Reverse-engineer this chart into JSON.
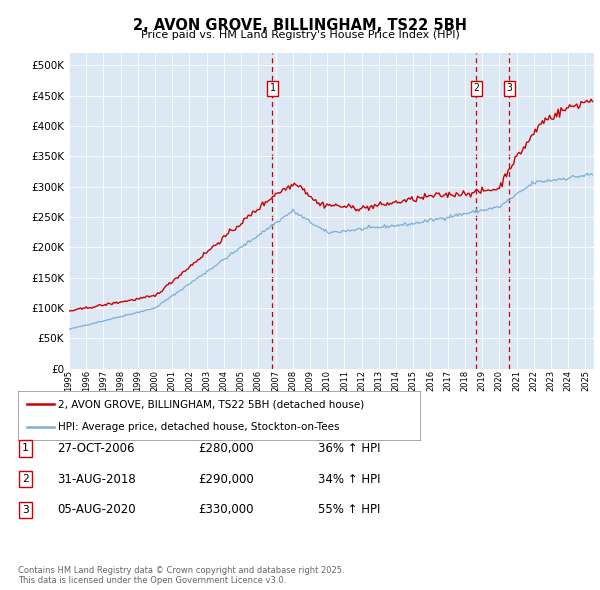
{
  "title": "2, AVON GROVE, BILLINGHAM, TS22 5BH",
  "subtitle": "Price paid vs. HM Land Registry's House Price Index (HPI)",
  "background_color": "#dce9f5",
  "ylim": [
    0,
    520000
  ],
  "yticks": [
    0,
    50000,
    100000,
    150000,
    200000,
    250000,
    300000,
    350000,
    400000,
    450000,
    500000
  ],
  "red_line_color": "#cc0000",
  "blue_line_color": "#7bafd4",
  "vline_color": "#cc0000",
  "transaction_markers": [
    {
      "date": 2006.82,
      "label": "1"
    },
    {
      "date": 2018.66,
      "label": "2"
    },
    {
      "date": 2020.59,
      "label": "3"
    }
  ],
  "legend_entries": [
    "2, AVON GROVE, BILLINGHAM, TS22 5BH (detached house)",
    "HPI: Average price, detached house, Stockton-on-Tees"
  ],
  "table_rows": [
    {
      "num": "1",
      "date": "27-OCT-2006",
      "price": "£280,000",
      "change": "36% ↑ HPI"
    },
    {
      "num": "2",
      "date": "31-AUG-2018",
      "price": "£290,000",
      "change": "34% ↑ HPI"
    },
    {
      "num": "3",
      "date": "05-AUG-2020",
      "price": "£330,000",
      "change": "55% ↑ HPI"
    }
  ],
  "footer": "Contains HM Land Registry data © Crown copyright and database right 2025.\nThis data is licensed under the Open Government Licence v3.0."
}
